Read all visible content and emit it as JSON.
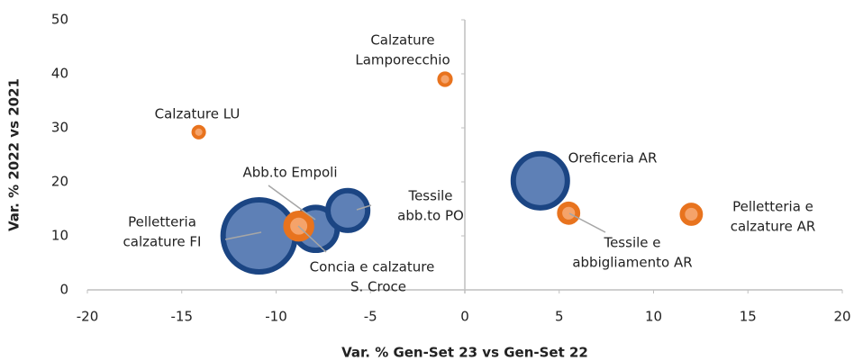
{
  "chart_data": {
    "type": "bubble",
    "x_label": "Var. % Gen-Set 23 vs Gen-Set 22",
    "y_label": "Var. % 2022 vs 2021",
    "xlim": [
      -20,
      20
    ],
    "xticks": [
      -20,
      -15,
      -10,
      -5,
      0,
      5,
      10,
      15,
      20
    ],
    "ylim": [
      0,
      50
    ],
    "yticks": [
      0,
      10,
      20,
      30,
      40,
      50
    ],
    "colors": {
      "blue": {
        "stroke": "#1b4583",
        "fill": "#5e80b6"
      },
      "orange": {
        "stroke": "#e8731e",
        "fill": "#f5a36a"
      }
    },
    "points": [
      {
        "label": [
          "Pelletteria",
          "calzature FI"
        ],
        "x": -10.9,
        "y": 10,
        "size": 100,
        "color": "blue"
      },
      {
        "label": [
          "Abb.to Empoli"
        ],
        "x": -7.9,
        "y": 11.3,
        "size": 39,
        "color": "blue"
      },
      {
        "label": [
          "Tessile",
          "abb.to PO"
        ],
        "x": -6.2,
        "y": 14.7,
        "size": 34,
        "color": "blue"
      },
      {
        "label": [
          "Oreficeria AR"
        ],
        "x": 4,
        "y": 20.2,
        "size": 59,
        "color": "blue"
      },
      {
        "label": [
          "Concia e calzature",
          "S. Croce"
        ],
        "x": -8.8,
        "y": 11.8,
        "size": 16,
        "color": "orange"
      },
      {
        "label": [
          "Tessile e",
          "abbigliamento AR"
        ],
        "x": 5.5,
        "y": 14.2,
        "size": 9,
        "color": "orange"
      },
      {
        "label": [
          "Pelletteria e",
          "calzature AR"
        ],
        "x": 12,
        "y": 14,
        "size": 9,
        "color": "orange"
      },
      {
        "label": [
          "Calzature",
          "Lamporecchio"
        ],
        "x": -1.05,
        "y": 39,
        "size": 4,
        "color": "orange"
      },
      {
        "label": [
          "Calzature LU"
        ],
        "x": -14.1,
        "y": 29.2,
        "size": 3.5,
        "color": "orange"
      }
    ]
  }
}
